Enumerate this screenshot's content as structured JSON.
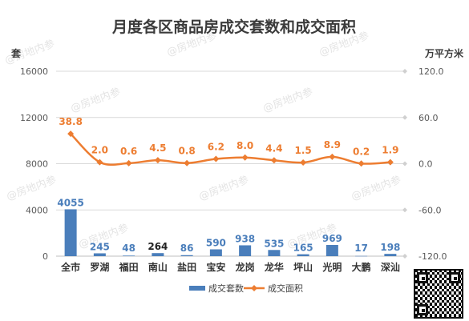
{
  "chart_data": {
    "type": "bar+line",
    "title": "月度各区商品房成交套数和成交面积",
    "left_axis_unit": "套",
    "right_axis_unit": "万平方米",
    "categories": [
      "全市",
      "罗湖",
      "福田",
      "南山",
      "盐田",
      "宝安",
      "龙岗",
      "龙华",
      "坪山",
      "光明",
      "大鹏",
      "深汕"
    ],
    "left_ylim": [
      0,
      16000
    ],
    "left_ticks": [
      "0",
      "4000",
      "8000",
      "12000",
      "16000"
    ],
    "right_ylim": [
      -120,
      120
    ],
    "right_ticks": [
      "-120.0",
      "-60.0",
      "0.0",
      "60.0",
      "120.0"
    ],
    "grid": true,
    "legend_position": "bottom",
    "series": [
      {
        "name": "成交套数",
        "kind": "bar",
        "axis": "left",
        "color": "#4a7ebb",
        "values": [
          4055,
          245,
          48,
          264,
          86,
          590,
          938,
          535,
          165,
          969,
          17,
          198
        ],
        "labels": [
          "4055",
          "245",
          "48",
          "264",
          "86",
          "590",
          "938",
          "535",
          "165",
          "969",
          "17",
          "198"
        ]
      },
      {
        "name": "成交面积",
        "kind": "line",
        "axis": "right",
        "color": "#ed7d31",
        "values": [
          38.8,
          2.0,
          0.6,
          4.5,
          0.8,
          6.2,
          8.0,
          4.4,
          1.5,
          8.9,
          0.2,
          1.9
        ],
        "labels": [
          "38.8",
          "2.0",
          "0.6",
          "4.5",
          "0.8",
          "6.2",
          "8.0",
          "4.4",
          "1.5",
          "8.9",
          "0.2",
          "1.9"
        ]
      }
    ]
  },
  "colors": {
    "title": "#3b3b3b",
    "axis_text": "#595959",
    "bar_label": "#4a7ebb",
    "line_label": "#ed7d31",
    "grid": "#d9d9d9"
  },
  "watermark": "@房地内参"
}
